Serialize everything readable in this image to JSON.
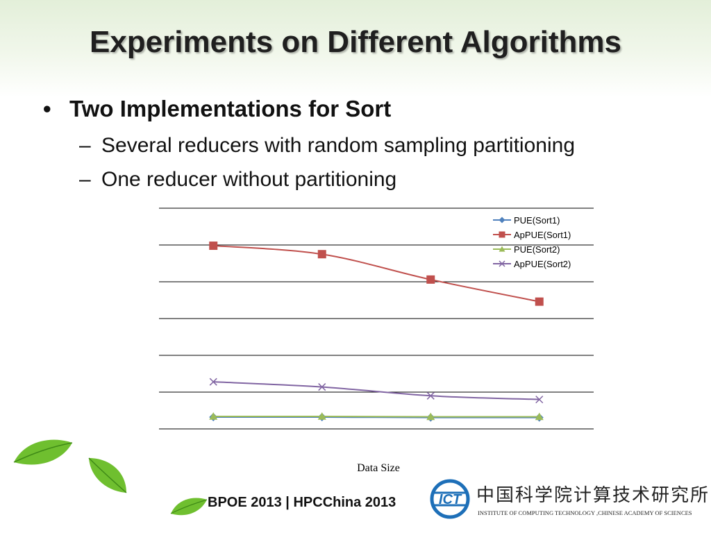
{
  "title": "Experiments on Different Algorithms",
  "bullets": [
    {
      "text": "Two Implementations for Sort",
      "subs": [
        "Several reducers with random sampling partitioning",
        "One reducer without partitioning"
      ]
    }
  ],
  "footer": {
    "left": "BPOE 2013",
    "separator": "|",
    "right": "HPCChina 2013"
  },
  "institute": {
    "logo_text": "ICT",
    "name_cn": "中国科学院计算技术研究所",
    "name_en": "INSTITUTE OF COMPUTING TECHNOLOGY ,CHINESE ACADEMY OF SCIENCES"
  },
  "chart_data": {
    "type": "line",
    "xlabel": "Data Size",
    "ylabel": "",
    "ylim": [
      0,
      6
    ],
    "gridlines": [
      0,
      1,
      2,
      3,
      4,
      5,
      6
    ],
    "legend_position": "top-right",
    "categories": [
      "",
      "",
      "",
      ""
    ],
    "series": [
      {
        "name": "PUE(Sort1)",
        "color": "#4f81bd",
        "marker": "diamond",
        "values": [
          0.32,
          0.32,
          0.31,
          0.31
        ]
      },
      {
        "name": "ApPUE(Sort1)",
        "color": "#c0504d",
        "marker": "square",
        "values": [
          4.98,
          4.75,
          4.06,
          3.46
        ]
      },
      {
        "name": "PUE(Sort2)",
        "color": "#9bbb59",
        "marker": "triangle",
        "values": [
          0.34,
          0.34,
          0.33,
          0.33
        ]
      },
      {
        "name": "ApPUE(Sort2)",
        "color": "#8064a2",
        "marker": "x",
        "values": [
          1.28,
          1.14,
          0.9,
          0.8
        ]
      }
    ]
  }
}
